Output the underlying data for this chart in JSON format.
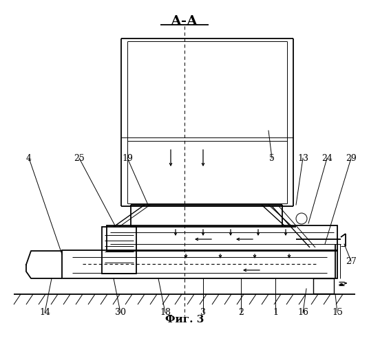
{
  "title": "А-А",
  "fig_label": "Фиг. 3",
  "bg_color": "#ffffff",
  "line_color": "#000000",
  "lw_main": 1.3,
  "lw_thin": 0.7,
  "lw_med": 1.0
}
